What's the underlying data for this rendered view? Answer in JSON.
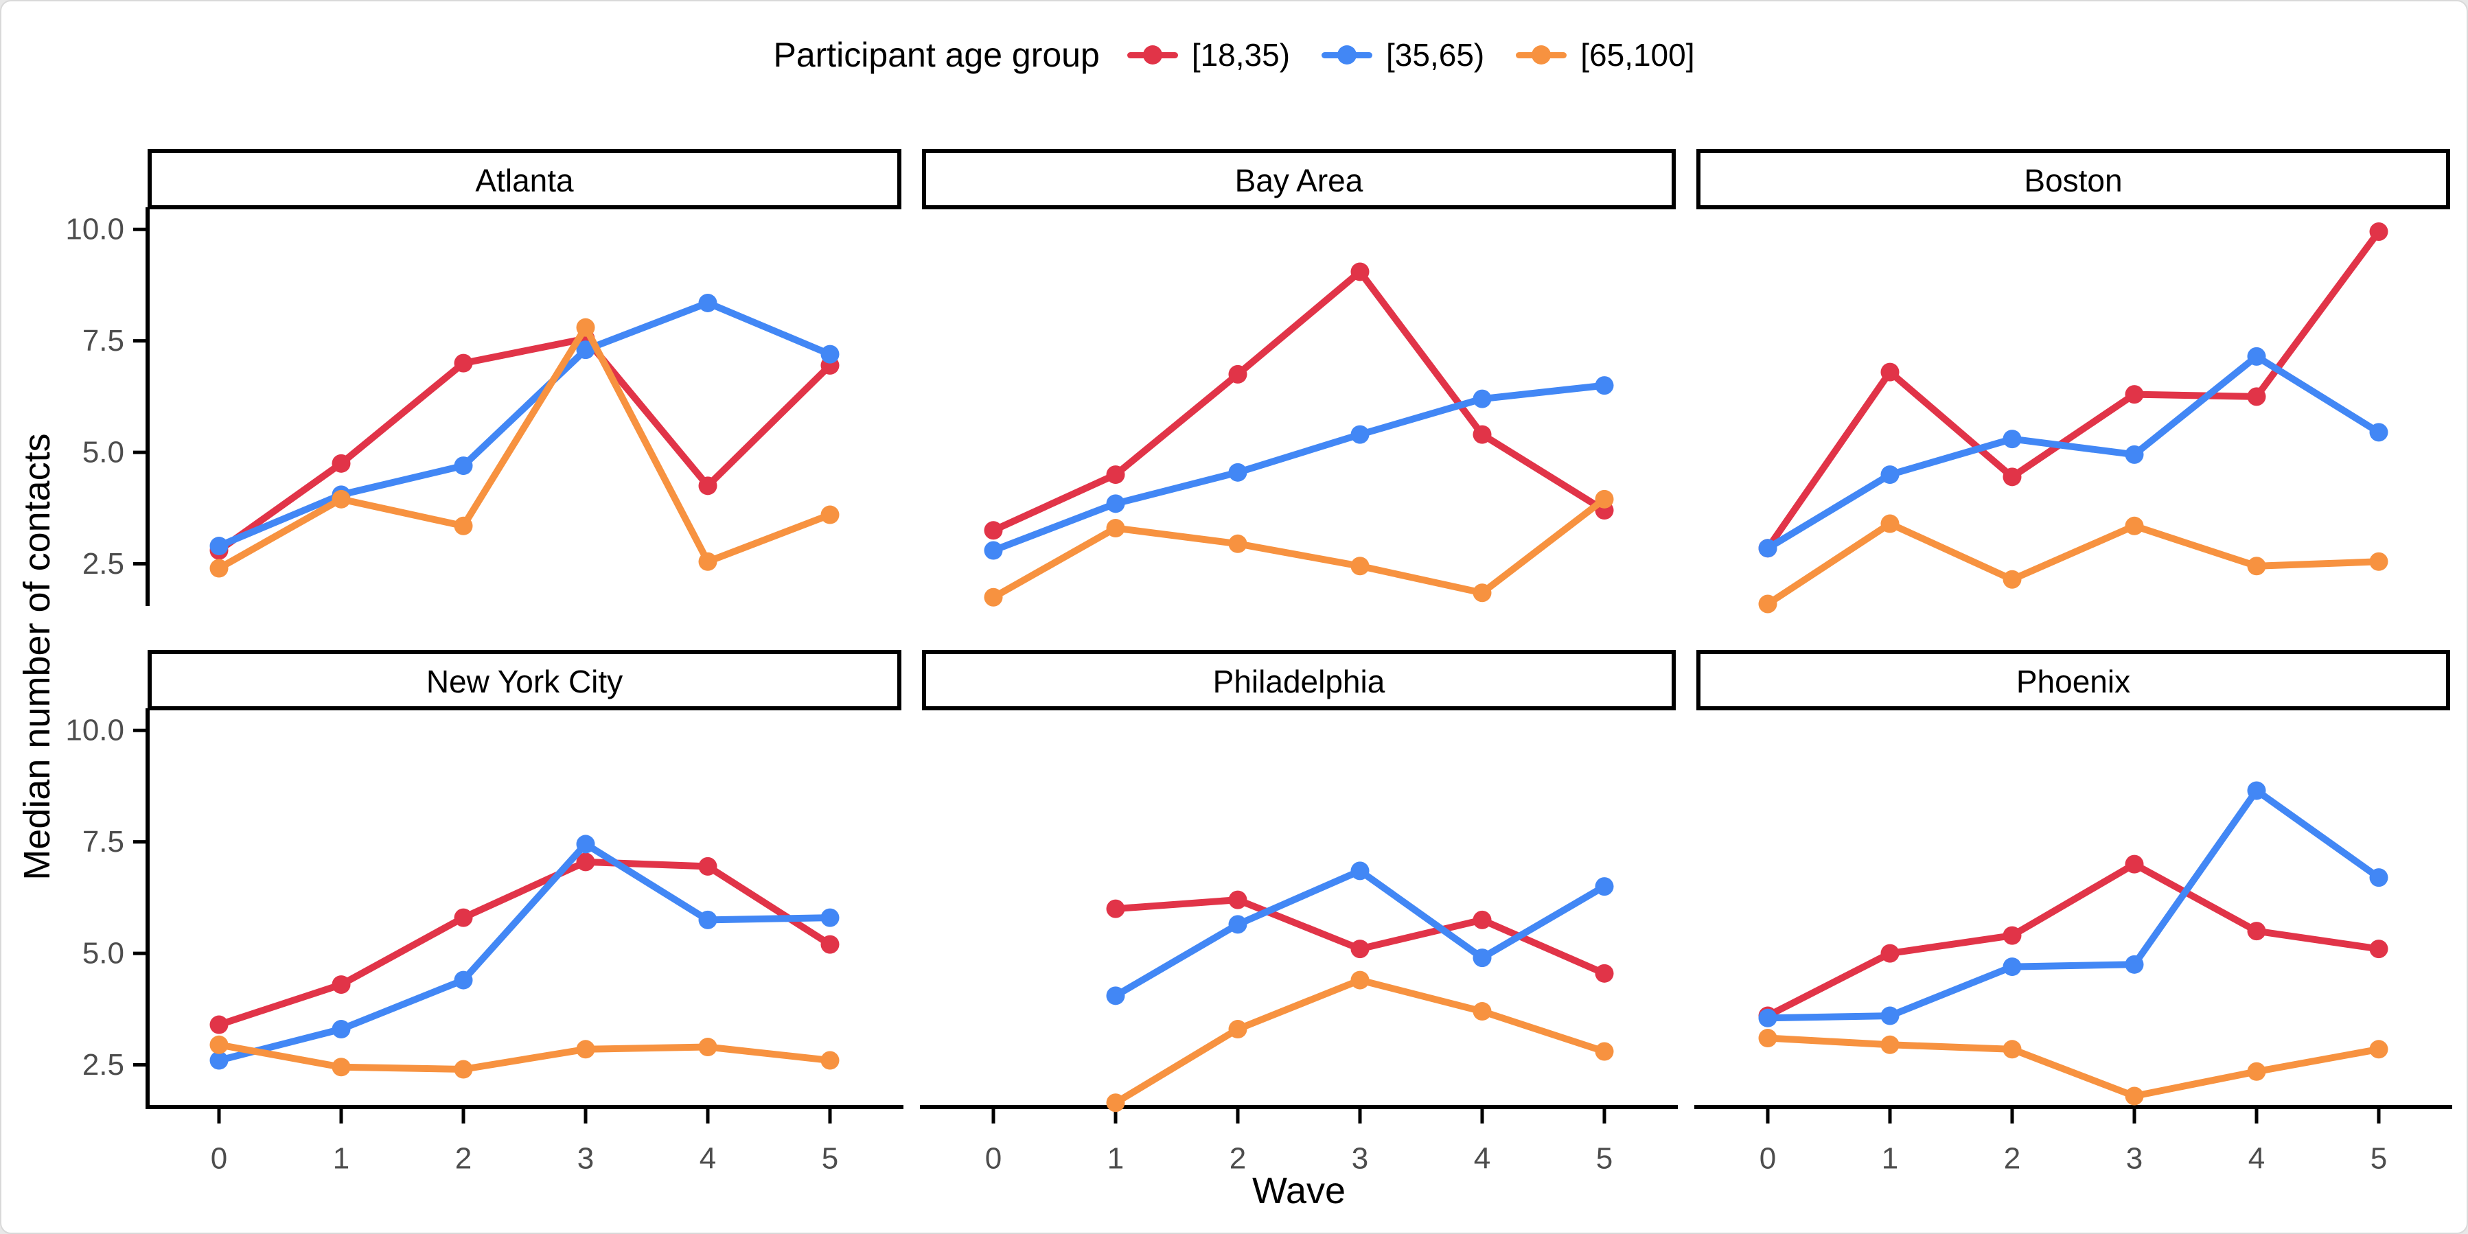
{
  "chart_data": {
    "type": "line",
    "legend_title": "Participant age group",
    "legend_position": "top",
    "xlabel": "Wave",
    "ylabel": "Median number of contacts",
    "grid": false,
    "x": [
      0,
      1,
      2,
      3,
      4,
      5
    ],
    "x_tick_labels": [
      "0",
      "1",
      "2",
      "3",
      "4",
      "5"
    ],
    "y_ticks": [
      2.5,
      5.0,
      7.5,
      10.0
    ],
    "y_tick_labels": [
      "2.5",
      "5.0",
      "7.5",
      "10.0"
    ],
    "ylim": [
      1.6,
      10.45
    ],
    "groups": [
      {
        "label": "[18,35)",
        "color": "#e13448"
      },
      {
        "label": "[35,65)",
        "color": "#4287f5"
      },
      {
        "label": "[65,100]",
        "color": "#f79240"
      }
    ],
    "facets": [
      {
        "title": "Atlanta",
        "series": [
          {
            "group": "[18,35)",
            "values": [
              2.8,
              4.75,
              7.0,
              7.55,
              4.25,
              6.95
            ]
          },
          {
            "group": "[35,65)",
            "values": [
              2.9,
              4.05,
              4.7,
              7.3,
              8.35,
              7.2
            ]
          },
          {
            "group": "[65,100]",
            "values": [
              2.4,
              3.95,
              3.35,
              7.8,
              2.55,
              3.6
            ]
          }
        ]
      },
      {
        "title": "Bay Area",
        "series": [
          {
            "group": "[18,35)",
            "values": [
              3.25,
              4.5,
              6.75,
              9.05,
              5.4,
              3.7
            ]
          },
          {
            "group": "[35,65)",
            "values": [
              2.8,
              3.85,
              4.55,
              5.4,
              6.2,
              6.5
            ]
          },
          {
            "group": "[65,100]",
            "values": [
              1.75,
              3.3,
              2.95,
              2.45,
              1.85,
              3.95
            ]
          }
        ]
      },
      {
        "title": "Boston",
        "series": [
          {
            "group": "[18,35)",
            "values": [
              2.85,
              6.8,
              4.45,
              6.3,
              6.25,
              9.95
            ]
          },
          {
            "group": "[35,65)",
            "values": [
              2.85,
              4.5,
              5.3,
              4.95,
              7.15,
              5.45
            ]
          },
          {
            "group": "[65,100]",
            "values": [
              1.6,
              3.4,
              2.15,
              3.35,
              2.45,
              2.55
            ]
          }
        ]
      },
      {
        "title": "New York City",
        "series": [
          {
            "group": "[18,35)",
            "values": [
              3.4,
              4.3,
              5.8,
              7.05,
              6.95,
              5.2
            ]
          },
          {
            "group": "[35,65)",
            "values": [
              2.6,
              3.3,
              4.4,
              7.45,
              5.75,
              5.8
            ]
          },
          {
            "group": "[65,100]",
            "values": [
              2.95,
              2.45,
              2.4,
              2.85,
              2.9,
              2.6
            ]
          }
        ]
      },
      {
        "title": "Philadelphia",
        "series": [
          {
            "group": "[18,35)",
            "values": [
              null,
              6.0,
              6.2,
              5.1,
              5.75,
              4.55
            ]
          },
          {
            "group": "[35,65)",
            "values": [
              null,
              4.05,
              5.65,
              6.85,
              4.9,
              6.5
            ]
          },
          {
            "group": "[65,100]",
            "values": [
              null,
              1.65,
              3.3,
              4.4,
              3.7,
              2.8
            ]
          }
        ]
      },
      {
        "title": "Phoenix",
        "series": [
          {
            "group": "[18,35)",
            "values": [
              3.6,
              5.0,
              5.4,
              7.0,
              5.5,
              5.1
            ]
          },
          {
            "group": "[35,65)",
            "values": [
              3.55,
              3.6,
              4.7,
              4.75,
              8.65,
              6.7
            ]
          },
          {
            "group": "[65,100]",
            "values": [
              3.1,
              2.95,
              2.85,
              1.8,
              2.35,
              2.85
            ]
          }
        ]
      }
    ],
    "colors": {
      "background": "#ffffff",
      "frame_border": "#d9d9d9",
      "axis_line": "#000000",
      "tick_mark": "#000000",
      "tick_label": "#4d4d4d",
      "strip_border": "#000000",
      "strip_text": "#000000"
    }
  }
}
